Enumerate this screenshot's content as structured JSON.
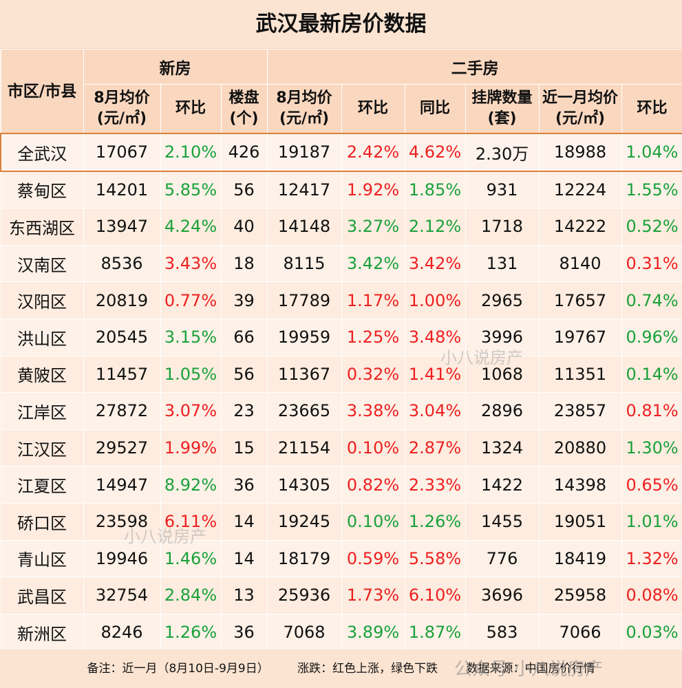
{
  "title": "武汉最新房价数据",
  "headers": {
    "district": "市区/市县",
    "new_group": "新房",
    "second_group": "二手房",
    "new_cols": [
      "8月均价(元/㎡)",
      "环比",
      "楼盘(个)"
    ],
    "second_cols": [
      "8月均价(元/㎡)",
      "环比",
      "同比",
      "挂牌数量(套)",
      "近一月均价(元/㎡)",
      "环比"
    ]
  },
  "rows": [
    {
      "district": "全武汉",
      "new_price": "17067",
      "new_mom": "2.10%",
      "new_mom_dir": "down",
      "projects": "426",
      "sh_price": "19187",
      "sh_mom": "2.42%",
      "sh_mom_dir": "up",
      "sh_yoy": "4.62%",
      "sh_yoy_dir": "up",
      "listings": "2.30万",
      "recent_price": "18988",
      "recent_mom": "1.04%",
      "recent_mom_dir": "down"
    },
    {
      "district": "蔡甸区",
      "new_price": "14201",
      "new_mom": "5.85%",
      "new_mom_dir": "down",
      "projects": "56",
      "sh_price": "12417",
      "sh_mom": "1.92%",
      "sh_mom_dir": "up",
      "sh_yoy": "1.85%",
      "sh_yoy_dir": "down",
      "listings": "931",
      "recent_price": "12224",
      "recent_mom": "1.55%",
      "recent_mom_dir": "down"
    },
    {
      "district": "东西湖区",
      "new_price": "13947",
      "new_mom": "4.24%",
      "new_mom_dir": "down",
      "projects": "40",
      "sh_price": "14148",
      "sh_mom": "3.27%",
      "sh_mom_dir": "down",
      "sh_yoy": "2.12%",
      "sh_yoy_dir": "down",
      "listings": "1718",
      "recent_price": "14222",
      "recent_mom": "0.52%",
      "recent_mom_dir": "down"
    },
    {
      "district": "汉南区",
      "new_price": "8536",
      "new_mom": "3.43%",
      "new_mom_dir": "up",
      "projects": "18",
      "sh_price": "8115",
      "sh_mom": "3.42%",
      "sh_mom_dir": "down",
      "sh_yoy": "3.42%",
      "sh_yoy_dir": "up",
      "listings": "131",
      "recent_price": "8140",
      "recent_mom": "0.31%",
      "recent_mom_dir": "up"
    },
    {
      "district": "汉阳区",
      "new_price": "20819",
      "new_mom": "0.77%",
      "new_mom_dir": "up",
      "projects": "39",
      "sh_price": "17789",
      "sh_mom": "1.17%",
      "sh_mom_dir": "up",
      "sh_yoy": "1.00%",
      "sh_yoy_dir": "up",
      "listings": "2965",
      "recent_price": "17657",
      "recent_mom": "0.74%",
      "recent_mom_dir": "down"
    },
    {
      "district": "洪山区",
      "new_price": "20545",
      "new_mom": "3.15%",
      "new_mom_dir": "down",
      "projects": "66",
      "sh_price": "19959",
      "sh_mom": "1.25%",
      "sh_mom_dir": "up",
      "sh_yoy": "3.48%",
      "sh_yoy_dir": "up",
      "listings": "3996",
      "recent_price": "19767",
      "recent_mom": "0.96%",
      "recent_mom_dir": "down"
    },
    {
      "district": "黄陂区",
      "new_price": "11457",
      "new_mom": "1.05%",
      "new_mom_dir": "down",
      "projects": "56",
      "sh_price": "11367",
      "sh_mom": "0.32%",
      "sh_mom_dir": "up",
      "sh_yoy": "1.41%",
      "sh_yoy_dir": "up",
      "listings": "1068",
      "recent_price": "11351",
      "recent_mom": "0.14%",
      "recent_mom_dir": "down"
    },
    {
      "district": "江岸区",
      "new_price": "27872",
      "new_mom": "3.07%",
      "new_mom_dir": "up",
      "projects": "23",
      "sh_price": "23665",
      "sh_mom": "3.38%",
      "sh_mom_dir": "up",
      "sh_yoy": "3.04%",
      "sh_yoy_dir": "up",
      "listings": "2896",
      "recent_price": "23857",
      "recent_mom": "0.81%",
      "recent_mom_dir": "up"
    },
    {
      "district": "江汉区",
      "new_price": "29527",
      "new_mom": "1.99%",
      "new_mom_dir": "up",
      "projects": "15",
      "sh_price": "21154",
      "sh_mom": "0.10%",
      "sh_mom_dir": "up",
      "sh_yoy": "2.87%",
      "sh_yoy_dir": "up",
      "listings": "1324",
      "recent_price": "20880",
      "recent_mom": "1.30%",
      "recent_mom_dir": "down"
    },
    {
      "district": "江夏区",
      "new_price": "14947",
      "new_mom": "8.92%",
      "new_mom_dir": "down",
      "projects": "36",
      "sh_price": "14305",
      "sh_mom": "0.82%",
      "sh_mom_dir": "up",
      "sh_yoy": "2.33%",
      "sh_yoy_dir": "up",
      "listings": "1422",
      "recent_price": "14398",
      "recent_mom": "0.65%",
      "recent_mom_dir": "up"
    },
    {
      "district": "硚口区",
      "new_price": "23598",
      "new_mom": "6.11%",
      "new_mom_dir": "up",
      "projects": "14",
      "sh_price": "19245",
      "sh_mom": "0.10%",
      "sh_mom_dir": "down",
      "sh_yoy": "1.26%",
      "sh_yoy_dir": "down",
      "listings": "1455",
      "recent_price": "19051",
      "recent_mom": "1.01%",
      "recent_mom_dir": "down"
    },
    {
      "district": "青山区",
      "new_price": "19946",
      "new_mom": "1.46%",
      "new_mom_dir": "down",
      "projects": "14",
      "sh_price": "18179",
      "sh_mom": "0.59%",
      "sh_mom_dir": "up",
      "sh_yoy": "5.58%",
      "sh_yoy_dir": "up",
      "listings": "776",
      "recent_price": "18419",
      "recent_mom": "1.32%",
      "recent_mom_dir": "up"
    },
    {
      "district": "武昌区",
      "new_price": "32754",
      "new_mom": "2.84%",
      "new_mom_dir": "down",
      "projects": "13",
      "sh_price": "25936",
      "sh_mom": "1.73%",
      "sh_mom_dir": "up",
      "sh_yoy": "6.10%",
      "sh_yoy_dir": "up",
      "listings": "3696",
      "recent_price": "25958",
      "recent_mom": "0.08%",
      "recent_mom_dir": "up"
    },
    {
      "district": "新洲区",
      "new_price": "8246",
      "new_mom": "1.26%",
      "new_mom_dir": "down",
      "projects": "36",
      "sh_price": "7068",
      "sh_mom": "3.89%",
      "sh_mom_dir": "down",
      "sh_yoy": "1.87%",
      "sh_yoy_dir": "down",
      "listings": "583",
      "recent_price": "7066",
      "recent_mom": "0.03%",
      "recent_mom_dir": "down"
    }
  ],
  "colors": {
    "up": "#ee1f1f",
    "down": "#19a13a",
    "highlight_border": "#d9803a"
  },
  "footer": {
    "note": "备注：近一月（8月10日-9月9日）",
    "legend": "涨跌：红色上涨，绿色下跌",
    "source": "数据来源：中国房价行情"
  },
  "watermarks": [
    "小八说房产",
    "小八说房产",
    "公众号 小八说房产"
  ]
}
